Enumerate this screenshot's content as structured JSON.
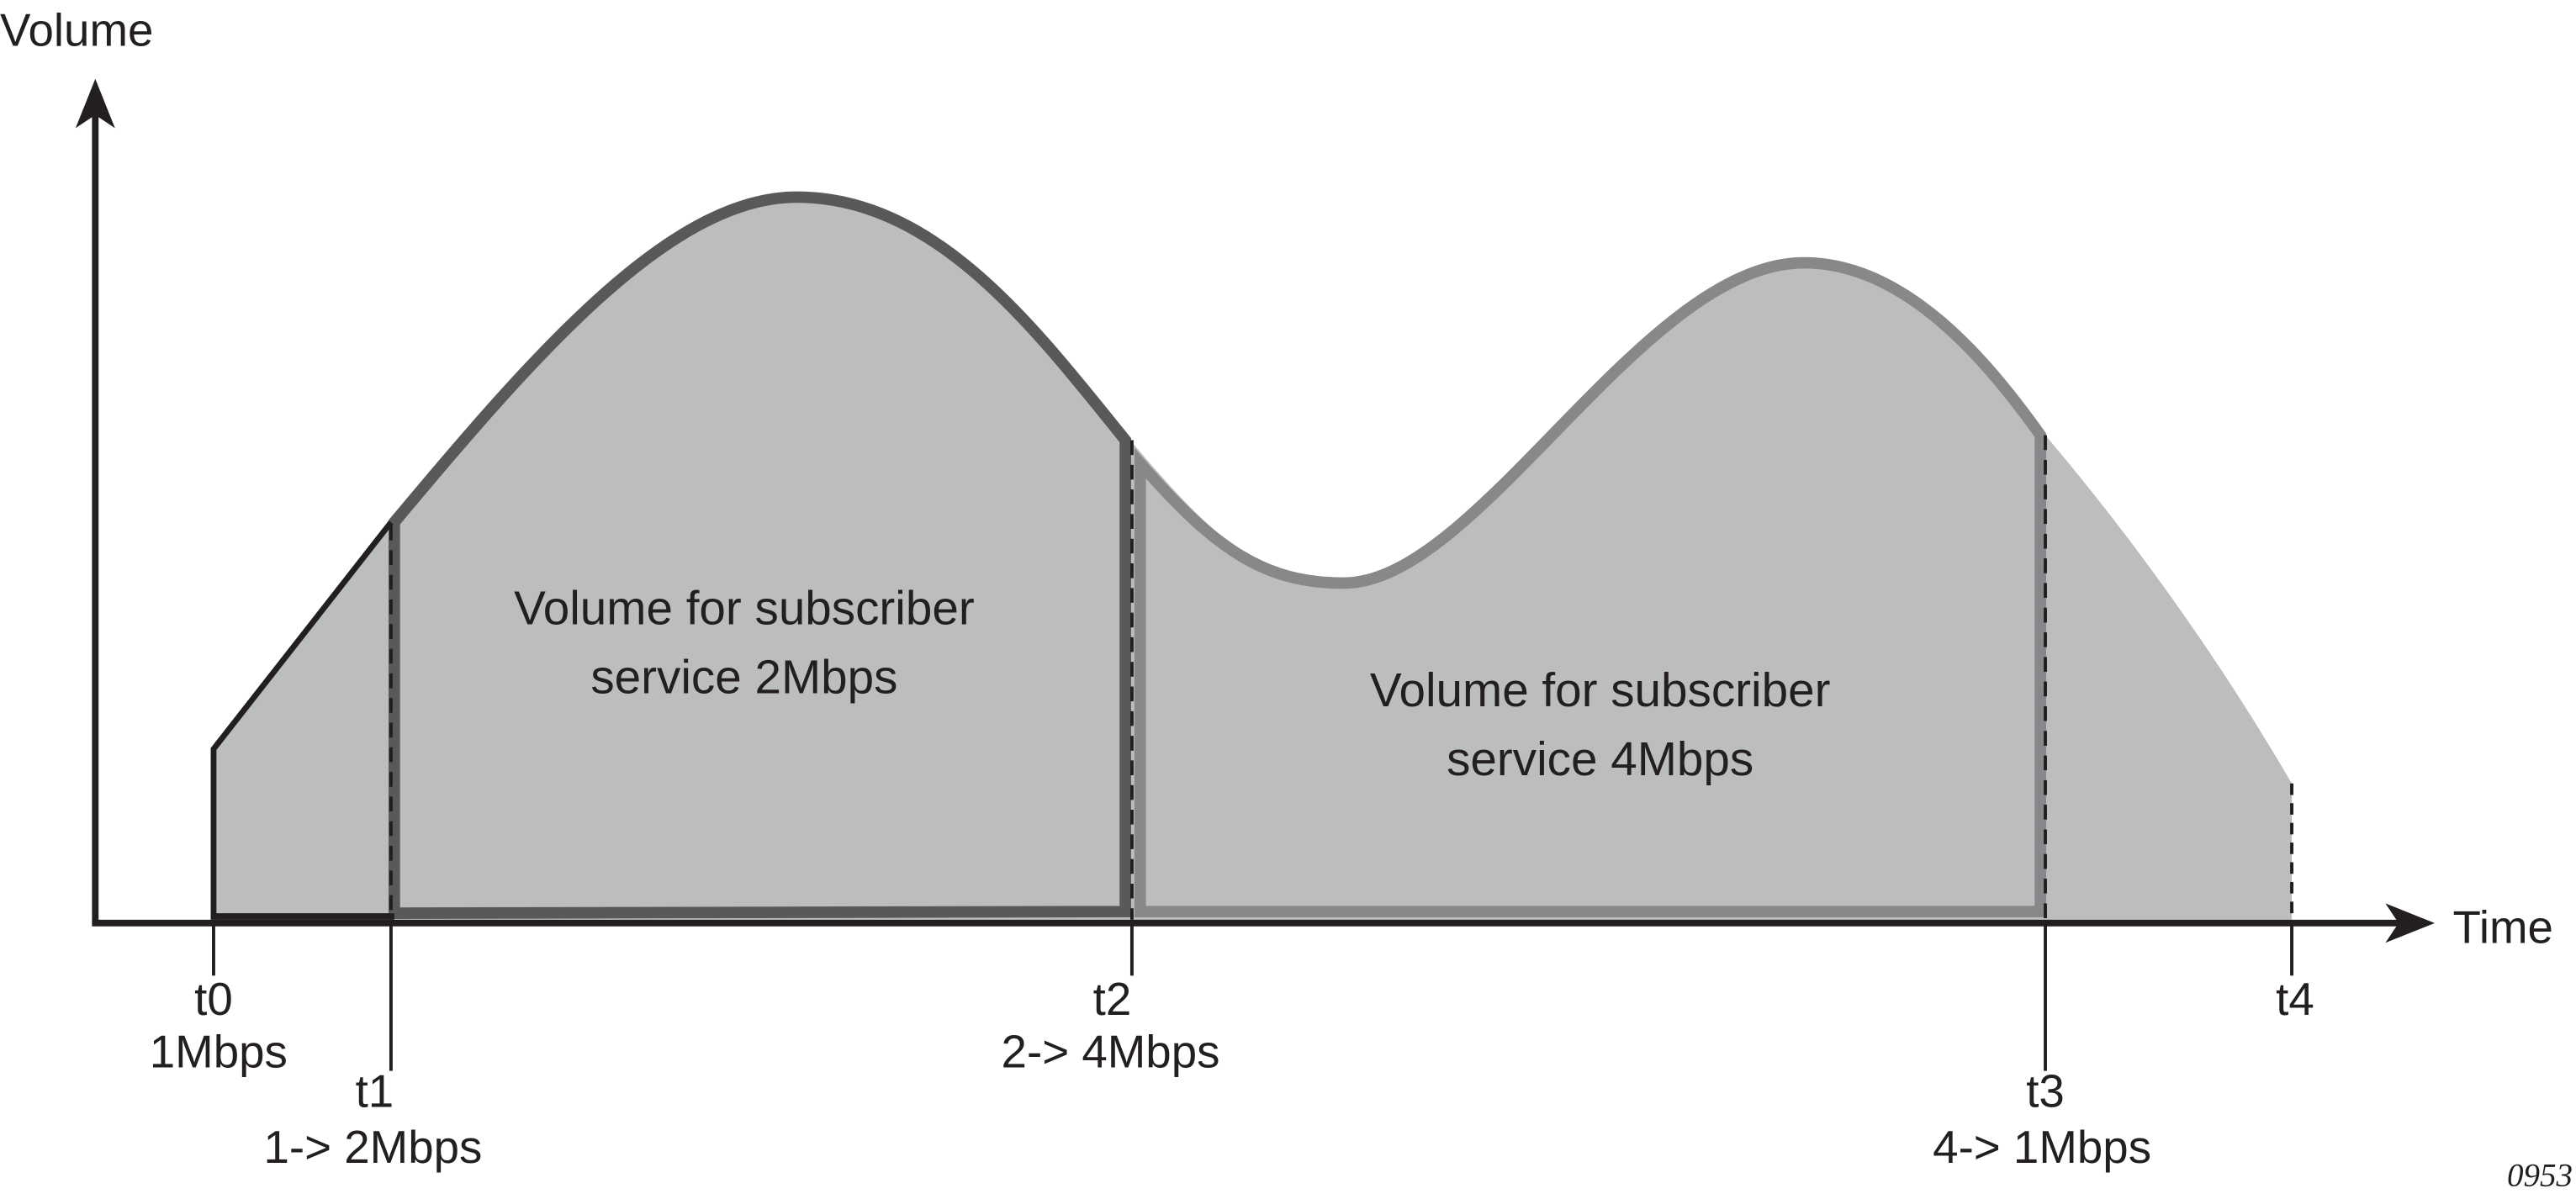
{
  "axes": {
    "y_label": "Volume",
    "x_label": "Time"
  },
  "markers": [
    {
      "time": "t0",
      "rate": "1Mbps"
    },
    {
      "time": "t1",
      "rate": "1-> 2Mbps"
    },
    {
      "time": "t2",
      "rate": "2-> 4Mbps"
    },
    {
      "time": "t3",
      "rate": "4-> 1Mbps"
    },
    {
      "time": "t4",
      "rate": ""
    }
  ],
  "regions": [
    {
      "line1": "Volume for subscriber",
      "line2": "service 2Mbps"
    },
    {
      "line1": "Volume for subscriber",
      "line2": "service 4Mbps"
    }
  ],
  "figure_id": "0953",
  "colors": {
    "area_fill": "#bcbdbf",
    "region_2mbps_outline": "#58595b",
    "region_4mbps_outline": "#87888a",
    "axis": "#231f20"
  }
}
